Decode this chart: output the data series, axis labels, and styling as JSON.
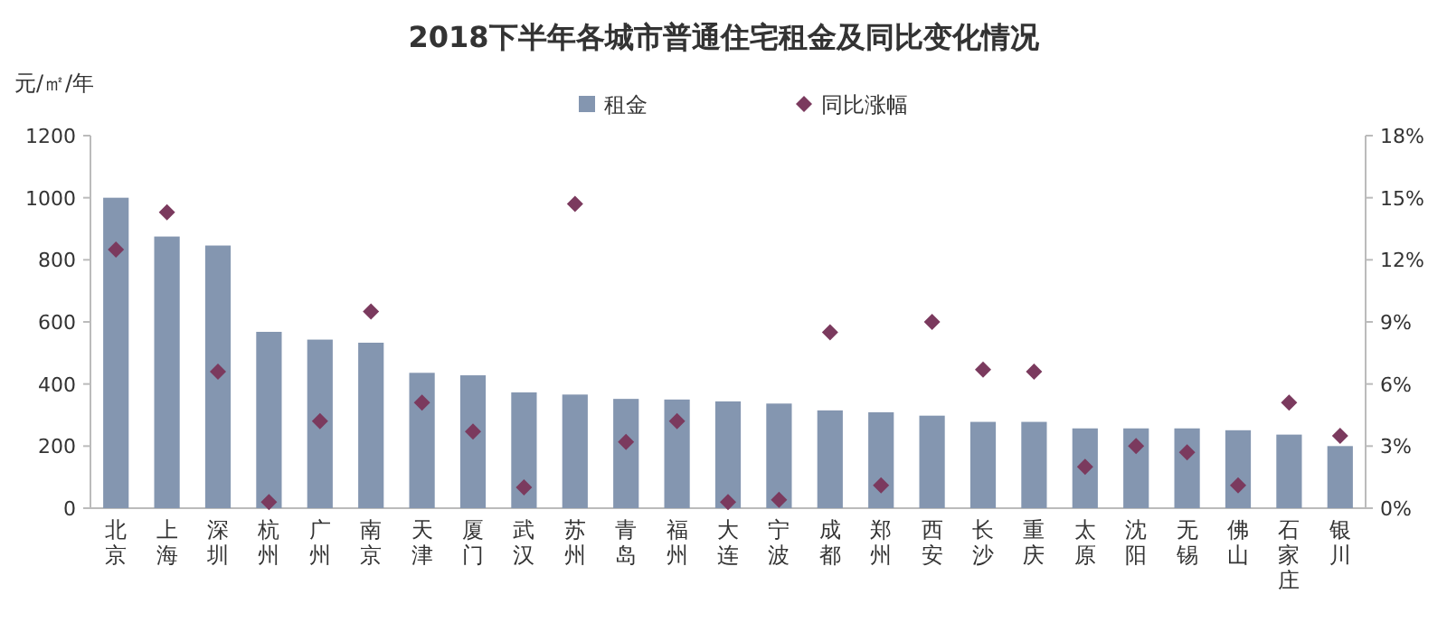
{
  "chart_data": {
    "type": "bar",
    "title": "2018下半年各城市普通住宅租金及同比变化情况",
    "ylabel": "元/㎡/年",
    "categories": [
      "北京",
      "上海",
      "深圳",
      "杭州",
      "广州",
      "南京",
      "天津",
      "厦门",
      "武汉",
      "苏州",
      "青岛",
      "福州",
      "大连",
      "宁波",
      "成都",
      "郑州",
      "西安",
      "长沙",
      "重庆",
      "太原",
      "沈阳",
      "无锡",
      "佛山",
      "石家庄",
      "银川"
    ],
    "series": [
      {
        "name": "租金",
        "color": "#8496b0",
        "values": [
          1000,
          875,
          846,
          568,
          543,
          533,
          436,
          428,
          373,
          366,
          352,
          350,
          344,
          337,
          315,
          309,
          298,
          278,
          278,
          257,
          257,
          257,
          251,
          237,
          200
        ]
      },
      {
        "name": "同比涨幅",
        "type": "scatter",
        "axis": "y2",
        "color": "#7b3a5e",
        "values": [
          12.5,
          14.3,
          6.6,
          0.3,
          4.2,
          9.5,
          5.1,
          3.7,
          1.0,
          14.7,
          3.2,
          4.2,
          0.3,
          0.4,
          8.5,
          1.1,
          9.0,
          6.7,
          6.6,
          2.0,
          3.0,
          2.7,
          1.1,
          5.1,
          3.5
        ]
      }
    ],
    "ylim": [
      0,
      1200
    ],
    "yticks": [
      0,
      200,
      400,
      600,
      800,
      1000,
      1200
    ],
    "y2lim": [
      0,
      18
    ],
    "y2ticks": [
      {
        "value": 0,
        "label": "0%"
      },
      {
        "value": 3,
        "label": "3%"
      },
      {
        "value": 6,
        "label": "6%"
      },
      {
        "value": 9,
        "label": "9%"
      },
      {
        "value": 12,
        "label": "12%"
      },
      {
        "value": 15,
        "label": "15%"
      },
      {
        "value": 18,
        "label": "18%"
      }
    ],
    "marker": "diamond",
    "legend": "top",
    "grid": false
  }
}
